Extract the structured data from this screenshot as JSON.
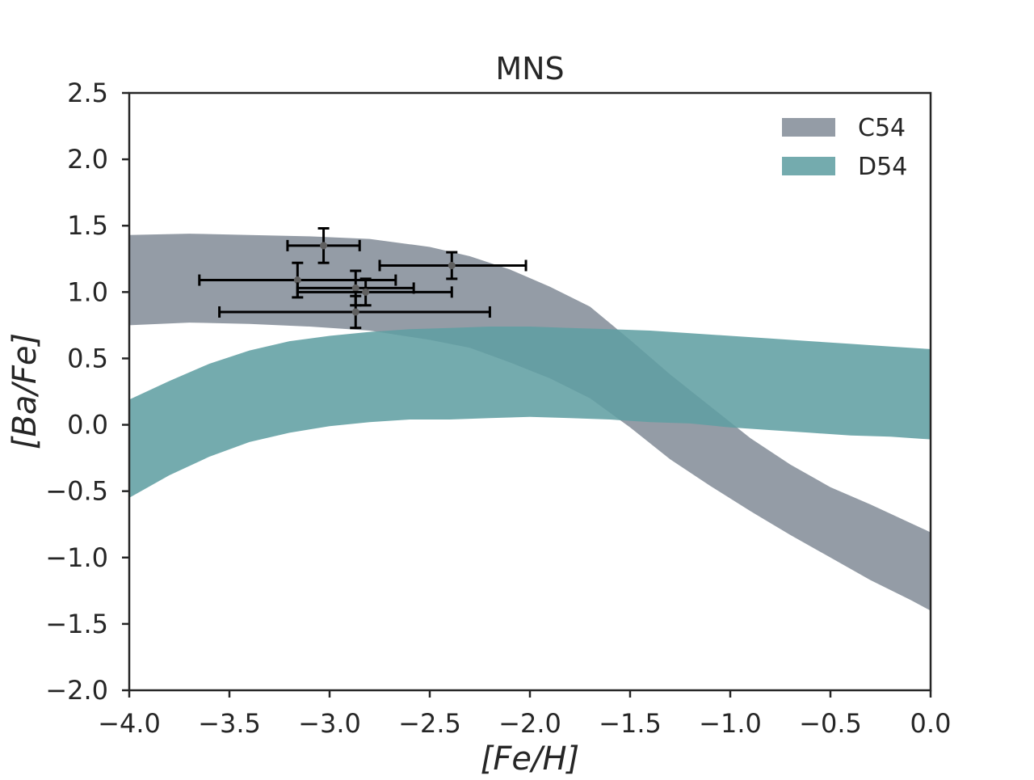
{
  "chart_data": {
    "type": "area",
    "title": "MNS",
    "xlabel": "[Fe/H]",
    "ylabel": "[Ba/Fe]",
    "xlim": [
      -4.0,
      0.0
    ],
    "ylim": [
      -2.0,
      2.5
    ],
    "xticks": [
      -4.0,
      -3.5,
      -3.0,
      -2.5,
      -2.0,
      -1.5,
      -1.0,
      -0.5,
      0.0
    ],
    "xtick_labels": [
      "−4.0",
      "−3.5",
      "−3.0",
      "−2.5",
      "−2.0",
      "−1.5",
      "−1.0",
      "−0.5",
      "0.0"
    ],
    "yticks": [
      2.5,
      2.0,
      1.5,
      1.0,
      0.5,
      0.0,
      -0.5,
      -1.0,
      -1.5,
      -2.0
    ],
    "ytick_labels": [
      "2.5",
      "2.0",
      "1.5",
      "1.0",
      "0.5",
      "0.0",
      "−0.5",
      "−1.0",
      "−1.5",
      "−2.0"
    ],
    "legend_position": "top-right",
    "series": [
      {
        "name": "C54",
        "color": "#949ca6",
        "opacity": 1.0,
        "x": [
          -4.0,
          -3.7,
          -3.4,
          -3.1,
          -2.8,
          -2.5,
          -2.3,
          -2.1,
          -1.9,
          -1.7,
          -1.5,
          -1.3,
          -1.1,
          -0.9,
          -0.7,
          -0.5,
          -0.3,
          -0.1,
          0.0
        ],
        "upper": [
          1.43,
          1.44,
          1.43,
          1.42,
          1.4,
          1.34,
          1.27,
          1.17,
          1.04,
          0.89,
          0.64,
          0.38,
          0.14,
          -0.1,
          -0.3,
          -0.47,
          -0.6,
          -0.74,
          -0.81
        ],
        "lower": [
          0.75,
          0.77,
          0.76,
          0.74,
          0.71,
          0.64,
          0.58,
          0.47,
          0.35,
          0.2,
          -0.02,
          -0.26,
          -0.46,
          -0.65,
          -0.83,
          -1.0,
          -1.17,
          -1.32,
          -1.4
        ]
      },
      {
        "name": "D54",
        "color": "#5f9ea2",
        "opacity": 0.87,
        "x": [
          -4.0,
          -3.8,
          -3.6,
          -3.4,
          -3.2,
          -3.0,
          -2.8,
          -2.6,
          -2.4,
          -2.2,
          -2.0,
          -1.8,
          -1.6,
          -1.4,
          -1.2,
          -1.0,
          -0.8,
          -0.6,
          -0.4,
          -0.2,
          0.0
        ],
        "upper": [
          0.19,
          0.33,
          0.46,
          0.56,
          0.63,
          0.67,
          0.7,
          0.72,
          0.73,
          0.74,
          0.74,
          0.73,
          0.72,
          0.71,
          0.69,
          0.67,
          0.65,
          0.63,
          0.61,
          0.59,
          0.57
        ],
        "lower": [
          -0.55,
          -0.38,
          -0.24,
          -0.13,
          -0.06,
          -0.01,
          0.02,
          0.04,
          0.04,
          0.05,
          0.06,
          0.05,
          0.04,
          0.02,
          0.01,
          -0.02,
          -0.04,
          -0.06,
          -0.08,
          -0.09,
          -0.11
        ]
      }
    ],
    "points": [
      {
        "x": -3.03,
        "y": 1.35,
        "xerr_minus": 0.18,
        "xerr_plus": 0.18,
        "yerr_minus": 0.13,
        "yerr_plus": 0.13
      },
      {
        "x": -2.39,
        "y": 1.2,
        "xerr_minus": 0.36,
        "xerr_plus": 0.37,
        "yerr_minus": 0.1,
        "yerr_plus": 0.1
      },
      {
        "x": -3.16,
        "y": 1.09,
        "xerr_minus": 0.49,
        "xerr_plus": 0.49,
        "yerr_minus": 0.13,
        "yerr_plus": 0.13
      },
      {
        "x": -2.87,
        "y": 1.03,
        "xerr_minus": 0.29,
        "xerr_plus": 0.29,
        "yerr_minus": 0.13,
        "yerr_plus": 0.13
      },
      {
        "x": -2.82,
        "y": 1.0,
        "xerr_minus": 0.34,
        "xerr_plus": 0.43,
        "yerr_minus": 0.1,
        "yerr_plus": 0.1
      },
      {
        "x": -2.87,
        "y": 0.85,
        "xerr_minus": 0.68,
        "xerr_plus": 0.67,
        "yerr_minus": 0.12,
        "yerr_plus": 0.12
      }
    ],
    "point_color": "#606060",
    "errorbar_color": "#000000"
  }
}
